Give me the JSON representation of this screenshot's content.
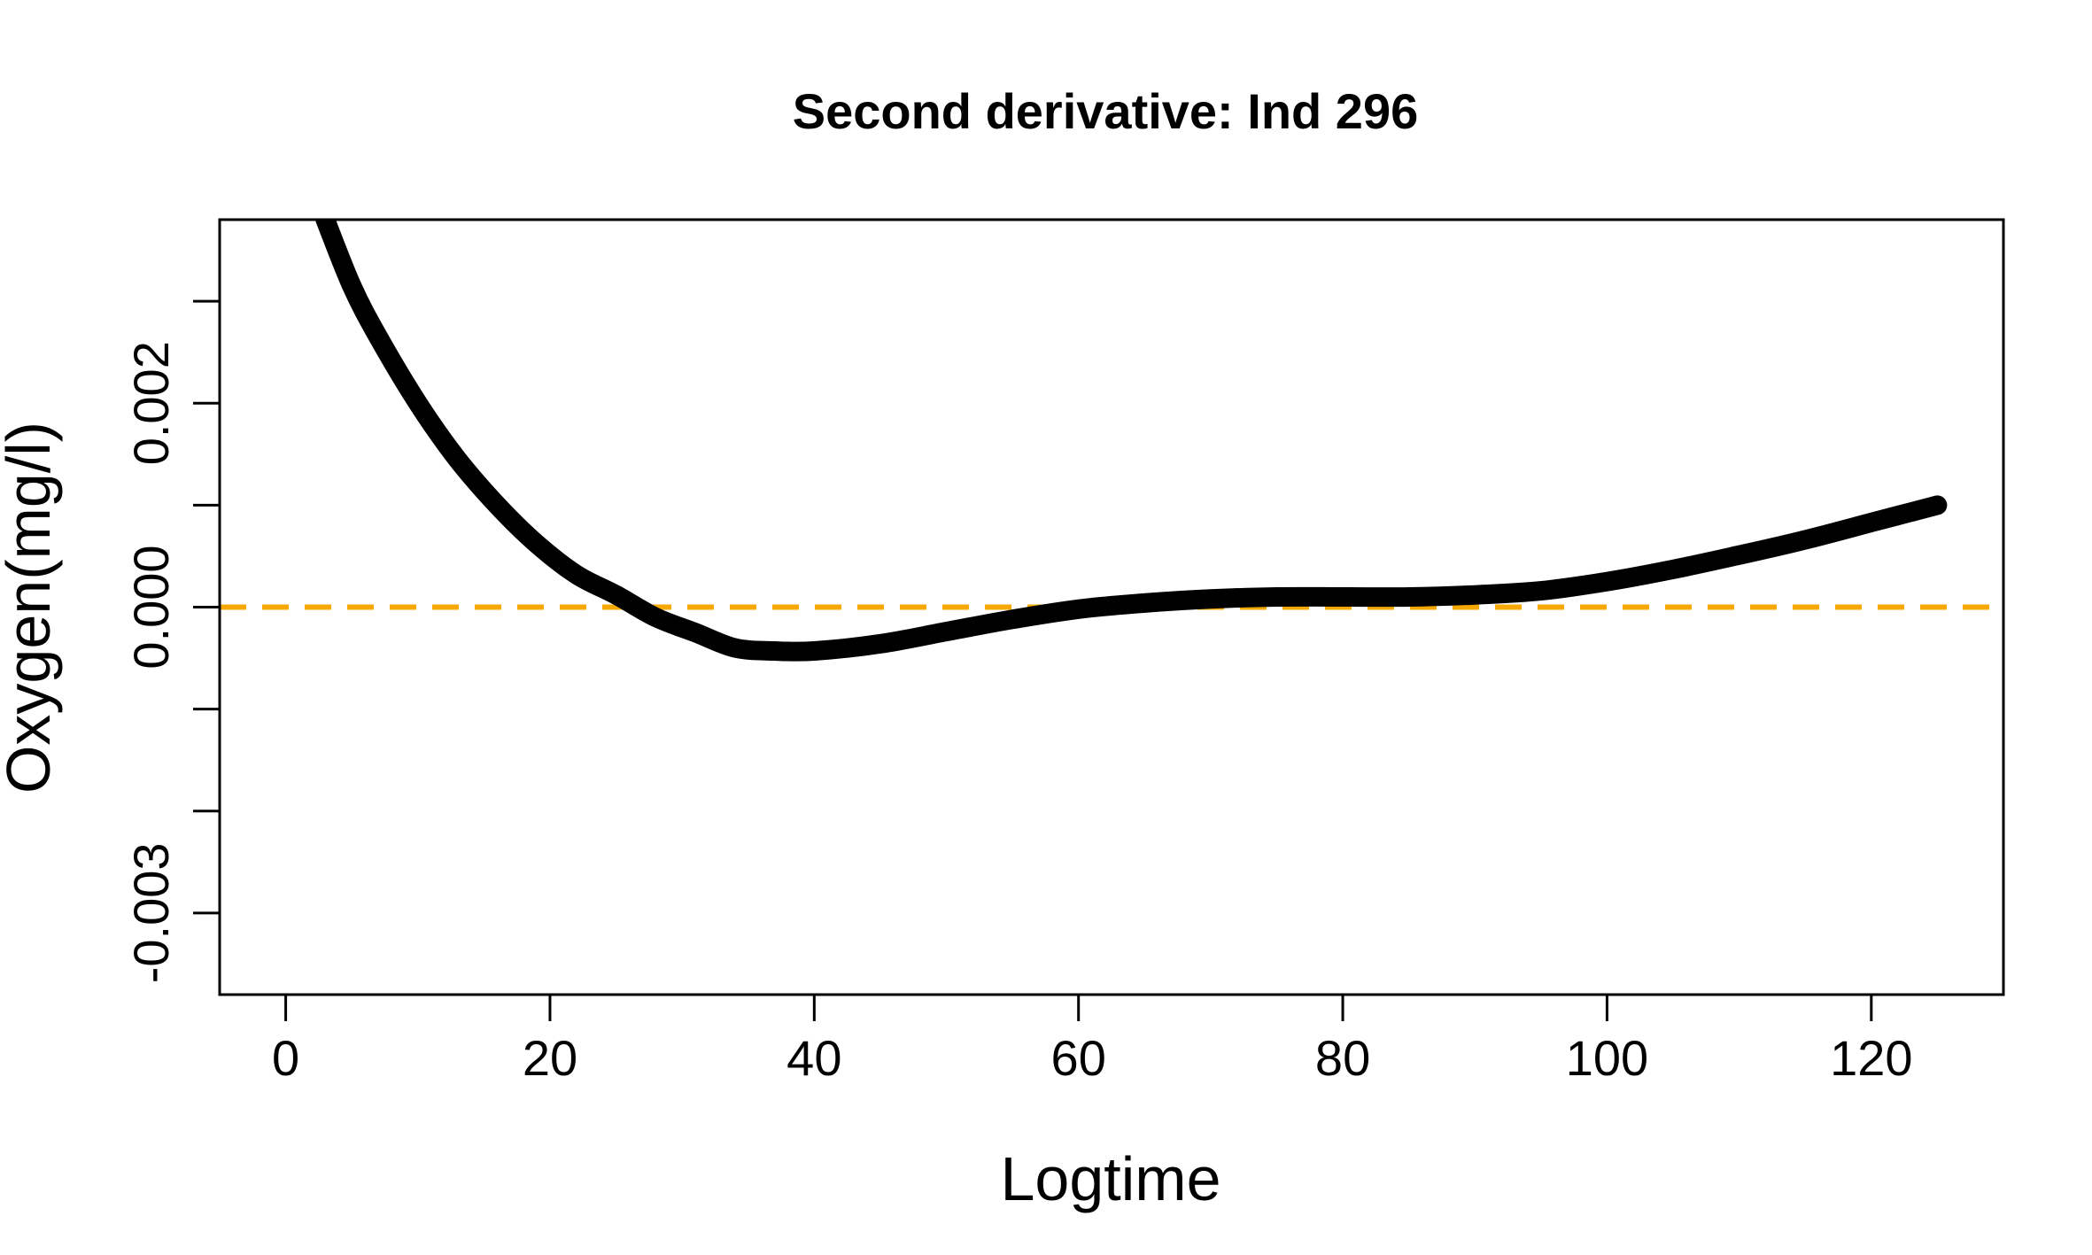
{
  "chart_data": {
    "type": "line",
    "title": "Second derivative: Ind 296",
    "xlabel": "Logtime",
    "ylabel": "Oxygen(mg/l)",
    "xlim": [
      -5,
      130
    ],
    "ylim": [
      -0.0038,
      0.0038
    ],
    "x_ticks": [
      0,
      20,
      40,
      60,
      80,
      100,
      120
    ],
    "y_ticks": [
      -0.003,
      -0.002,
      -0.001,
      0.0,
      0.001,
      0.002,
      0.003
    ],
    "y_tick_labels": [
      {
        "value": -0.003,
        "label": "-0.003"
      },
      {
        "value": 0.0,
        "label": "0.000"
      },
      {
        "value": 0.002,
        "label": "0.002"
      }
    ],
    "grid": false,
    "legend": "none",
    "reference_line": {
      "y": 0.0,
      "style": "dashed",
      "color": "#F5A800"
    },
    "series": [
      {
        "color": "#000000",
        "x": [
          3,
          5,
          7,
          10,
          13,
          16,
          19,
          22,
          25,
          28,
          31,
          34,
          37,
          40,
          45,
          50,
          55,
          60,
          65,
          70,
          75,
          80,
          85,
          90,
          95,
          100,
          105,
          110,
          115,
          120,
          125
        ],
        "y": [
          0.0038,
          0.00315,
          0.00265,
          0.002,
          0.00145,
          0.001,
          0.00062,
          0.00032,
          0.00012,
          -0.0001,
          -0.00025,
          -0.0004,
          -0.00043,
          -0.00043,
          -0.00036,
          -0.00024,
          -0.00012,
          -2e-05,
          4e-05,
          8e-05,
          0.0001,
          0.0001,
          0.0001,
          0.00012,
          0.00016,
          0.00025,
          0.00037,
          0.00051,
          0.00066,
          0.00083,
          0.001
        ]
      }
    ]
  }
}
